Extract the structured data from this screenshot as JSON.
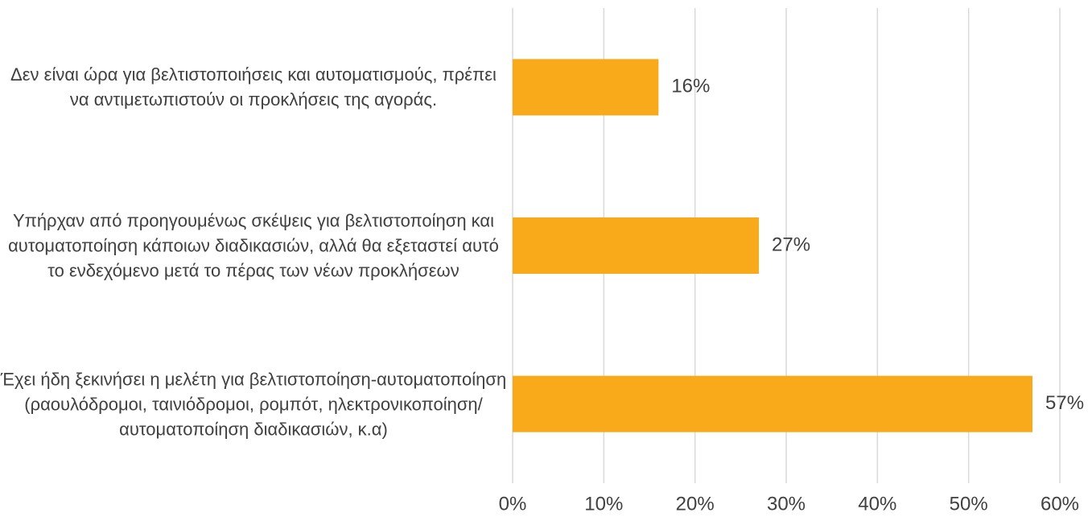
{
  "chart_data": {
    "type": "hbar",
    "categories": [
      "Δεν είναι ώρα για βελτιστοποιήσεις και αυτοματισμούς, πρέπει να αντιμετωπιστούν οι προκλήσεις της αγοράς.",
      "Υπήρχαν από προηγουμένως σκέψεις για βελτιστοποίηση και αυτοματοποίηση κάποιων διαδικασιών, αλλά θα εξεταστεί αυτό το ενδεχόμενο μετά το πέρας των νέων προκλήσεων",
      "Έχει ήδη ξεκινήσει η μελέτη για βελτιστοποίηση-αυτοματοποίηση (ραουλόδρομοι, ταινιόδρομοι, ρομπότ, ηλεκτρονικοποίηση/αυτοματοποίηση διαδικασιών, κ.α)"
    ],
    "values": [
      16,
      27,
      57
    ],
    "value_labels": [
      "16%",
      "27%",
      "57%"
    ],
    "color": "#f9aa1a",
    "xlim": [
      0,
      60
    ],
    "xticks": [
      {
        "value": 0,
        "label": "0%"
      },
      {
        "value": 10,
        "label": "10%"
      },
      {
        "value": 20,
        "label": "20%"
      },
      {
        "value": 30,
        "label": "30%"
      },
      {
        "value": 40,
        "label": "40%"
      },
      {
        "value": 50,
        "label": "50%"
      },
      {
        "value": 60,
        "label": "60%"
      }
    ],
    "grid": true
  }
}
